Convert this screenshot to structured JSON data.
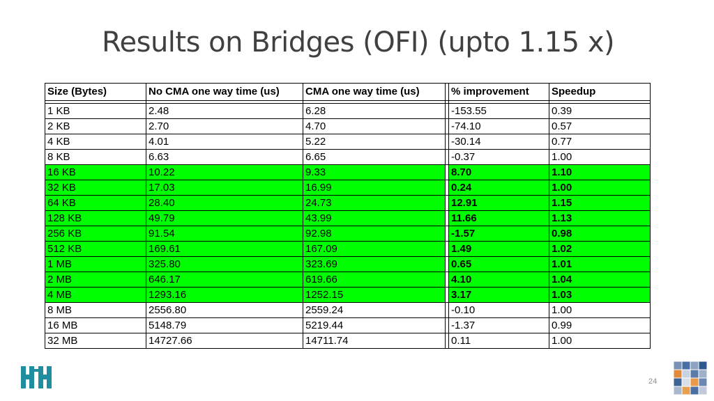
{
  "slide": {
    "title": "Results on Bridges (OFI) (upto 1.15 x)",
    "page_number": "24"
  },
  "table": {
    "headers": [
      "Size (Bytes)",
      "No CMA one way time (us)",
      "CMA one way time (us)",
      "% improvement",
      "Speedup"
    ],
    "highlight_color": "#00ff00",
    "rows": [
      {
        "size": "1 KB",
        "no_cma": "2.48",
        "cma": "6.28",
        "improvement": "-153.55",
        "speedup": "0.39",
        "highlight": false
      },
      {
        "size": "2 KB",
        "no_cma": "2.70",
        "cma": "4.70",
        "improvement": "-74.10",
        "speedup": "0.57",
        "highlight": false
      },
      {
        "size": "4 KB",
        "no_cma": "4.01",
        "cma": "5.22",
        "improvement": "-30.14",
        "speedup": "0.77",
        "highlight": false
      },
      {
        "size": "8 KB",
        "no_cma": "6.63",
        "cma": "6.65",
        "improvement": "-0.37",
        "speedup": "1.00",
        "highlight": false
      },
      {
        "size": "16 KB",
        "no_cma": "10.22",
        "cma": "9.33",
        "improvement": "8.70",
        "speedup": "1.10",
        "highlight": true
      },
      {
        "size": "32 KB",
        "no_cma": "17.03",
        "cma": "16.99",
        "improvement": "0.24",
        "speedup": "1.00",
        "highlight": true
      },
      {
        "size": "64 KB",
        "no_cma": "28.40",
        "cma": "24.73",
        "improvement": "12.91",
        "speedup": "1.15",
        "highlight": true
      },
      {
        "size": "128 KB",
        "no_cma": "49.79",
        "cma": "43.99",
        "improvement": "11.66",
        "speedup": "1.13",
        "highlight": true
      },
      {
        "size": "256 KB",
        "no_cma": "91.54",
        "cma": "92.98",
        "improvement": "-1.57",
        "speedup": "0.98",
        "highlight": true
      },
      {
        "size": "512 KB",
        "no_cma": "169.61",
        "cma": "167.09",
        "improvement": "1.49",
        "speedup": "1.02",
        "highlight": true
      },
      {
        "size": "1 MB",
        "no_cma": "325.80",
        "cma": "323.69",
        "improvement": "0.65",
        "speedup": "1.01",
        "highlight": true
      },
      {
        "size": "2 MB",
        "no_cma": "646.17",
        "cma": "619.66",
        "improvement": "4.10",
        "speedup": "1.04",
        "highlight": true
      },
      {
        "size": "4 MB",
        "no_cma": "1293.16",
        "cma": "1252.15",
        "improvement": "3.17",
        "speedup": "1.03",
        "highlight": true
      },
      {
        "size": "8 MB",
        "no_cma": "2556.80",
        "cma": "2559.24",
        "improvement": "-0.10",
        "speedup": "1.00",
        "highlight": false
      },
      {
        "size": "16 MB",
        "no_cma": "5148.79",
        "cma": "5219.44",
        "improvement": "-1.37",
        "speedup": "0.99",
        "highlight": false
      },
      {
        "size": "32 MB",
        "no_cma": "14727.66",
        "cma": "14711.74",
        "improvement": "0.11",
        "speedup": "1.00",
        "highlight": false
      }
    ]
  },
  "logos": {
    "left": "university-logo-icon",
    "right": "grid-logo-icon",
    "left_color": "#1f8ea1"
  }
}
